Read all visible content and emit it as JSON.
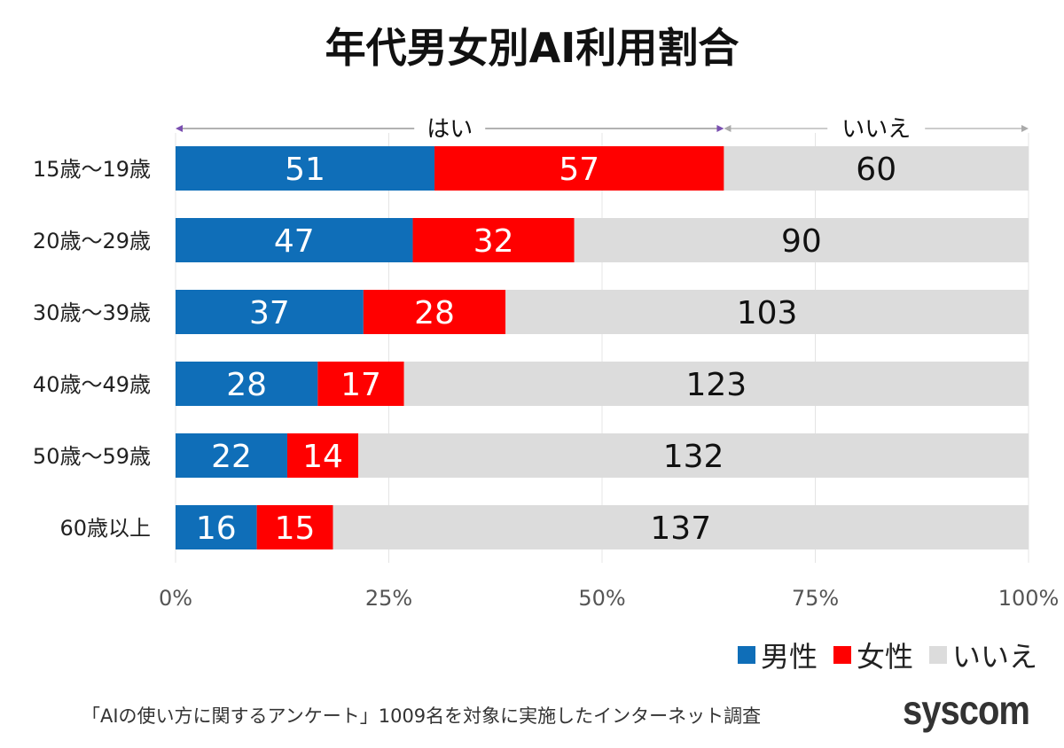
{
  "chart_data": {
    "type": "bar",
    "orientation": "horizontal",
    "stacked": "percent",
    "title": "年代男女別AI利用割合",
    "categories": [
      "15歳〜19歳",
      "20歳〜29歳",
      "30歳〜39歳",
      "40歳〜49歳",
      "50歳〜59歳",
      "60歳以上"
    ],
    "series": [
      {
        "name": "男性",
        "color": "#0F6EB8",
        "values": [
          51,
          47,
          37,
          28,
          22,
          16
        ]
      },
      {
        "name": "女性",
        "color": "#FF0000",
        "values": [
          57,
          32,
          28,
          17,
          14,
          15
        ]
      },
      {
        "name": "いいえ",
        "color": "#DCDCDC",
        "values": [
          60,
          90,
          103,
          123,
          132,
          137
        ]
      }
    ],
    "xticks": [
      "0%",
      "25%",
      "50%",
      "75%",
      "100%"
    ],
    "xlim": [
      0,
      100
    ],
    "grid": true,
    "legend": "bottom-right",
    "bracket_labels": {
      "yes": "はい",
      "no": "いいえ"
    }
  },
  "footer": {
    "note": "「AIの使い方に関するアンケート」1009名を対象に実施したインターネット調査",
    "logo": "syscom"
  }
}
